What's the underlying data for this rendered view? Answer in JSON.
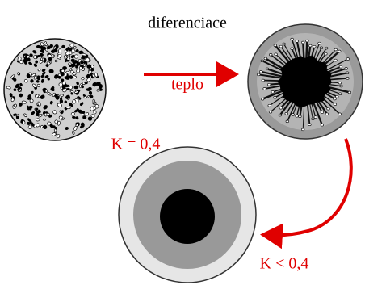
{
  "labels": {
    "process": "diferenciace",
    "heat": "teplo",
    "k_equal": "K = 0,4",
    "k_less": "K < 0,4"
  }
}
